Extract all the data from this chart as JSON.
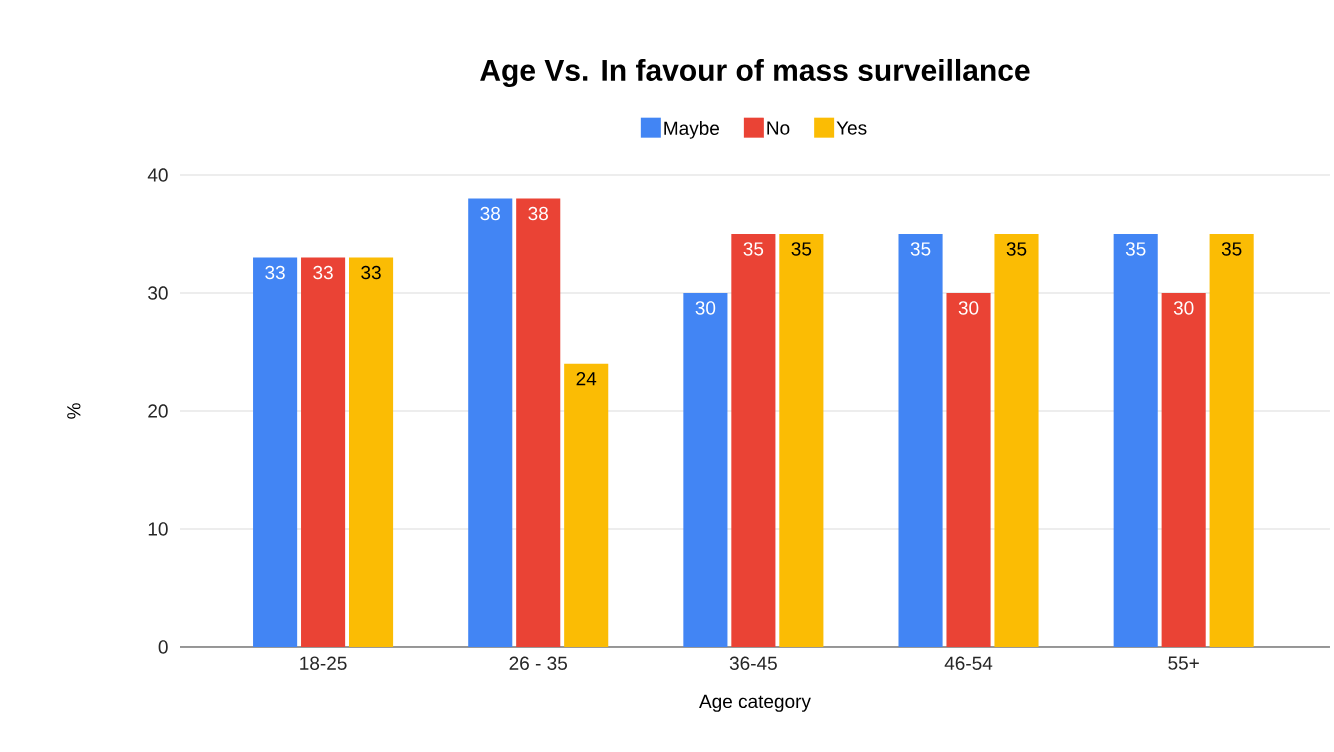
{
  "chart_data": {
    "type": "bar",
    "title": "Age Vs. In favour of mass surveillance",
    "xlabel": "Age category",
    "ylabel": "%",
    "categories": [
      "18-25",
      "26 - 35",
      "36-45",
      "46-54",
      "55+"
    ],
    "series": [
      {
        "name": "Maybe",
        "color": "#4285f4",
        "values": [
          33,
          38,
          30,
          35,
          35
        ]
      },
      {
        "name": "No",
        "color": "#ea4335",
        "values": [
          33,
          38,
          35,
          30,
          30
        ]
      },
      {
        "name": "Yes",
        "color": "#fbbc04",
        "values": [
          33,
          24,
          35,
          35,
          35
        ]
      }
    ],
    "ylim": [
      0,
      40
    ],
    "yticks": [
      0,
      10,
      20,
      30,
      40
    ],
    "grid": "y",
    "legend": "top",
    "data_labels": true
  }
}
